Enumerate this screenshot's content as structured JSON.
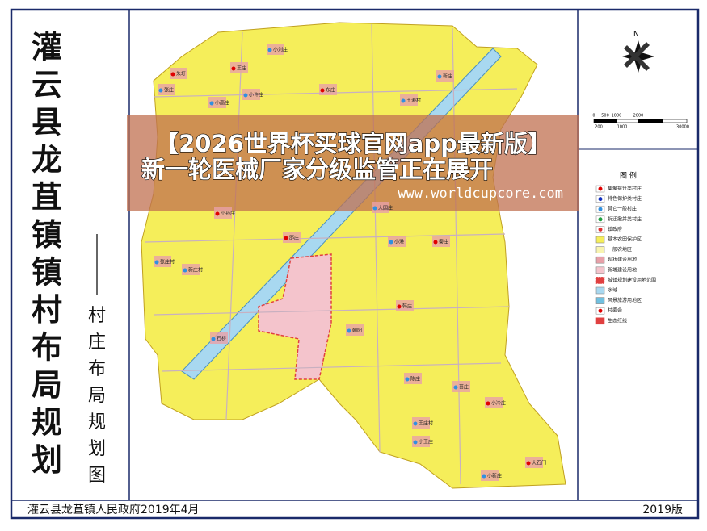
{
  "title": "灌云县龙苴镇镇村布局规划",
  "subtitle": "村庄布局规划图",
  "footer": {
    "left": "灌云县龙苴镇人民政府2019年4月",
    "right": "2019版"
  },
  "banner": {
    "line1": "【2026世界杯买球官网app最新版】",
    "line2": "新一轮医械厂家分级监管正在展开",
    "url": "www.worldcupcore.com"
  },
  "compass": {
    "label": "N"
  },
  "scale": {
    "top": [
      "0",
      "500",
      "1000",
      "2000"
    ],
    "bottom": [
      "200",
      "1000",
      "30000"
    ]
  },
  "legend": {
    "title": "图 例",
    "items": [
      {
        "label": "集聚提升类村庄",
        "color": "#e00000"
      },
      {
        "label": "特色保护类村庄",
        "color": "#1030c0"
      },
      {
        "label": "其它一般村庄",
        "color": "#3090e0"
      },
      {
        "label": "拆迁撤并类村庄",
        "color": "#20a040"
      },
      {
        "label": "镇政府",
        "color": "#e03030"
      },
      {
        "label": "基本农田保护区",
        "color": "#f5ee5a"
      },
      {
        "label": "一般农地区",
        "color": "#f8f4b0"
      },
      {
        "label": "现状建设用地",
        "color": "#e8a0a8"
      },
      {
        "label": "新增建设用地",
        "color": "#f4c4cc"
      },
      {
        "label": "城镇规划建设用地范围",
        "color": "#e04040"
      },
      {
        "label": "水域",
        "color": "#a8d8f0"
      },
      {
        "label": "风景旅游用地区",
        "color": "#70c0e0"
      },
      {
        "label": "村委会",
        "color": "#e00000"
      },
      {
        "label": "生态红线",
        "color": "#e04040"
      }
    ]
  },
  "places": [
    "朱圩",
    "张庄",
    "小高庄",
    "王庄",
    "小刘庄",
    "小许庄",
    "东庄",
    "王港村",
    "新庄",
    "小孙庄",
    "大园庄",
    "小港",
    "邵庄",
    "张庄村",
    "新庄村",
    "秦庄",
    "石桥",
    "朝阳",
    "韩庄",
    "陈庄",
    "苗庄",
    "小冷庄",
    "王庄村",
    "小王庄",
    "大石门",
    "小新庄"
  ]
}
